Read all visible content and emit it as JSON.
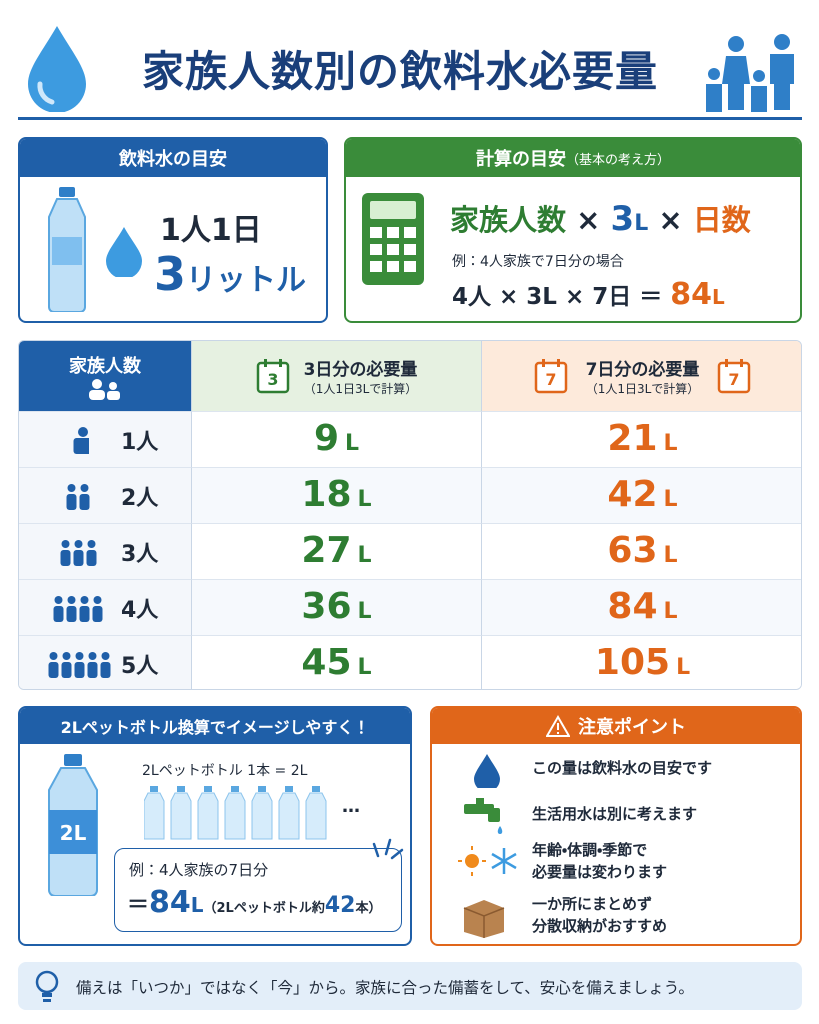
{
  "header": {
    "title": "家族人数別の飲料水必要量"
  },
  "guide": {
    "title": "飲料水の目安",
    "per": "1人1日",
    "amount": "3",
    "unit": "リットル"
  },
  "calc": {
    "title": "計算の目安",
    "subtitle": "（基本の考え方）",
    "formula": {
      "people": "家族人数",
      "times": "×",
      "liters": "3",
      "liter_unit": "L",
      "days": "日数"
    },
    "example_label": "例：4人家族で7日分の場合",
    "example_expr": "4人 × 3L × 7日 ＝",
    "example_result": "84",
    "example_unit": "L"
  },
  "table": {
    "header": "家族人数",
    "unit": "L",
    "col3": {
      "icon": "3",
      "title": "3日分の必要量",
      "note": "（1人1日3Lで計算）"
    },
    "col7": {
      "icon": "7",
      "title": "7日分の必要量",
      "note": "（1人1日3Lで計算）"
    },
    "rows": [
      {
        "people": "1人",
        "three": "9",
        "seven": "21"
      },
      {
        "people": "2人",
        "three": "18",
        "seven": "42"
      },
      {
        "people": "3人",
        "three": "27",
        "seven": "63"
      },
      {
        "people": "4人",
        "three": "36",
        "seven": "84"
      },
      {
        "people": "5人",
        "three": "45",
        "seven": "105"
      }
    ]
  },
  "bottle": {
    "title": "2Lペットボトル換算でイメージしやすく！",
    "label": "2L",
    "caption": "2Lペットボトル 1本 = 2L",
    "dots": "…",
    "example": "例：4人家族の7日分",
    "eq": "＝",
    "result": "84",
    "unit": "L",
    "note_pre": "（2Lペットボトル約",
    "count": "42",
    "note_post": "本）"
  },
  "caution": {
    "title": "注意ポイント",
    "items": [
      "この量は飲料水の目安です",
      "生活用水は別に考えます",
      "年齢・体調・季節で\n必要量は変わります",
      "一か所にまとめず\n分散収納がおすすめ"
    ]
  },
  "footer": {
    "text": "備えは「いつか」ではなく「今」から。家族に合った備蓄をして、安心を備えましょう。"
  }
}
